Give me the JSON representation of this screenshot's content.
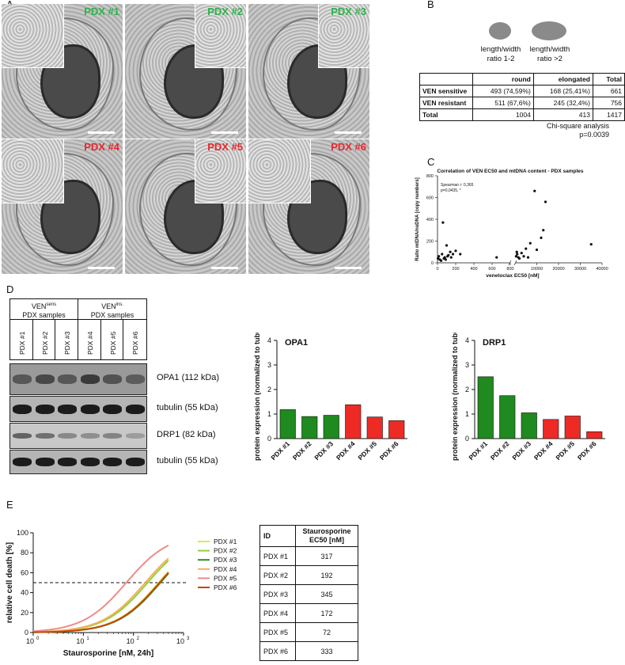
{
  "panel_a": {
    "letter": "A",
    "tiles": [
      {
        "label": "PDX #1",
        "color": "#2db24a"
      },
      {
        "label": "PDX #2",
        "color": "#2db24a"
      },
      {
        "label": "PDX #3",
        "color": "#2db24a"
      },
      {
        "label": "PDX #4",
        "color": "#e8262c"
      },
      {
        "label": "PDX #5",
        "color": "#e8262c"
      },
      {
        "label": "PDX #6",
        "color": "#e8262c"
      }
    ]
  },
  "panel_b": {
    "letter": "B",
    "shape1_label_1": "length/width",
    "shape1_label_2": "ratio 1-2",
    "shape2_label_1": "length/width",
    "shape2_label_2": "ratio >2",
    "table": {
      "headers": [
        "",
        "round",
        "elongated",
        "Total"
      ],
      "rows": [
        [
          "VEN sensitive",
          "493 (74,59%)",
          "168 (25,41%)",
          "661"
        ],
        [
          "VEN resistant",
          "511 (67,6%)",
          "245 (32,4%)",
          "756"
        ],
        [
          "Total",
          "1004",
          "413",
          "1417"
        ]
      ]
    },
    "stat_line1": "Chi-square analysis",
    "stat_line2": "p=0.0039"
  },
  "panel_c": {
    "letter": "C",
    "chart_data": {
      "type": "scatter",
      "title": "Correlation of VEN EC50 and mtDNA content - PDX samples",
      "xlabel": "venetoclax EC50 [nM]",
      "ylabel": "Ratio mtDNA/nuDNA [copy numbers]",
      "annotation_line1": "Spearman r: 0,365",
      "annotation_line2": "p=0,0435, *",
      "x_ticks_left": [
        "0",
        "200",
        "400",
        "600",
        "800"
      ],
      "x_ticks_right": [
        "10000",
        "20000",
        "30000",
        "40000"
      ],
      "y_ticks": [
        "0",
        "200",
        "400",
        "600",
        "800"
      ],
      "ylim": [
        0,
        800
      ],
      "points_left": [
        [
          5,
          40
        ],
        [
          15,
          60
        ],
        [
          25,
          30
        ],
        [
          40,
          20
        ],
        [
          50,
          80
        ],
        [
          60,
          370
        ],
        [
          70,
          40
        ],
        [
          80,
          50
        ],
        [
          90,
          30
        ],
        [
          100,
          160
        ],
        [
          110,
          60
        ],
        [
          120,
          70
        ],
        [
          140,
          100
        ],
        [
          150,
          50
        ],
        [
          170,
          80
        ],
        [
          200,
          110
        ],
        [
          250,
          80
        ],
        [
          650,
          50
        ]
      ],
      "points_right": [
        [
          500,
          60
        ],
        [
          800,
          100
        ],
        [
          1000,
          80
        ],
        [
          1500,
          50
        ],
        [
          2000,
          40
        ],
        [
          3000,
          90
        ],
        [
          4000,
          60
        ],
        [
          5000,
          130
        ],
        [
          6000,
          50
        ],
        [
          7000,
          180
        ],
        [
          9000,
          660
        ],
        [
          10000,
          120
        ],
        [
          12000,
          230
        ],
        [
          13000,
          300
        ],
        [
          14000,
          560
        ],
        [
          35000,
          170
        ]
      ]
    }
  },
  "panel_d": {
    "letter": "D",
    "group1_title_main": "VEN",
    "group1_title_sup": "sens",
    "group1_subtitle": "PDX samples",
    "group2_title_main": "VEN",
    "group2_title_sup": "ins.",
    "group2_subtitle": "PDX samples",
    "lanes": [
      "PDX #1",
      "PDX #2",
      "PDX #3",
      "PDX #4",
      "PDX #5",
      "PDX #6"
    ],
    "blot_labels": [
      "OPA1 (112 kDa)",
      "tubulin (55 kDa)",
      "DRP1 (82 kDa)",
      "tubulin (55 kDa)"
    ],
    "chart_data": [
      {
        "type": "bar",
        "title": "OPA1",
        "ylabel": "protein expression (normalized to tubulin)",
        "categories": [
          "PDX #1",
          "PDX #2",
          "PDX #3",
          "PDX #4",
          "PDX #5",
          "PDX #6"
        ],
        "values": [
          1.18,
          0.9,
          0.95,
          1.38,
          0.88,
          0.73
        ],
        "colors": [
          "#1f8a1f",
          "#1f8a1f",
          "#1f8a1f",
          "#ee2a24",
          "#ee2a24",
          "#ee2a24"
        ],
        "ylim": [
          0,
          4
        ],
        "y_ticks": [
          "0",
          "1",
          "2",
          "3",
          "4"
        ]
      },
      {
        "type": "bar",
        "title": "DRP1",
        "ylabel": "protein expression (normalized to tubulin)",
        "categories": [
          "PDX #1",
          "PDX #2",
          "PDX #3",
          "PDX #4",
          "PDX #5",
          "PDX #6"
        ],
        "values": [
          2.52,
          1.75,
          1.05,
          0.78,
          0.92,
          0.28
        ],
        "colors": [
          "#1f8a1f",
          "#1f8a1f",
          "#1f8a1f",
          "#ee2a24",
          "#ee2a24",
          "#ee2a24"
        ],
        "ylim": [
          0,
          4
        ],
        "y_ticks": [
          "0",
          "1",
          "2",
          "3",
          "4"
        ]
      }
    ]
  },
  "panel_e": {
    "letter": "E",
    "chart_data": {
      "type": "line",
      "xlabel": "Staurosporine [nM, 24h]",
      "ylabel": "relative cell death [%]",
      "ylim": [
        0,
        100
      ],
      "xlim_log10": [
        0,
        3
      ],
      "y_ticks": [
        "0",
        "20",
        "40",
        "60",
        "80",
        "100"
      ],
      "x_tick_base": "10",
      "x_tick_exps": [
        "0",
        "1",
        "2",
        "3"
      ],
      "reference_line": 50,
      "series": [
        {
          "name": "PDX #1",
          "color": "#d4ee55",
          "ec50": 317
        },
        {
          "name": "PDX #2",
          "color": "#8fd23c",
          "ec50": 192
        },
        {
          "name": "PDX #3",
          "color": "#2e8b2e",
          "ec50": 345
        },
        {
          "name": "PDX #4",
          "color": "#f5b05a",
          "ec50": 172
        },
        {
          "name": "PDX #5",
          "color": "#f08a8a",
          "ec50": 72
        },
        {
          "name": "PDX #6",
          "color": "#c8440a",
          "ec50": 333
        }
      ]
    },
    "table": {
      "header_id": "ID",
      "header_val_1": "Staurosporine",
      "header_val_2": "EC50 [nM]",
      "rows": [
        [
          "PDX #1",
          "317"
        ],
        [
          "PDX #2",
          "192"
        ],
        [
          "PDX #3",
          "345"
        ],
        [
          "PDX #4",
          "172"
        ],
        [
          "PDX #5",
          "72"
        ],
        [
          "PDX #6",
          "333"
        ]
      ]
    }
  }
}
